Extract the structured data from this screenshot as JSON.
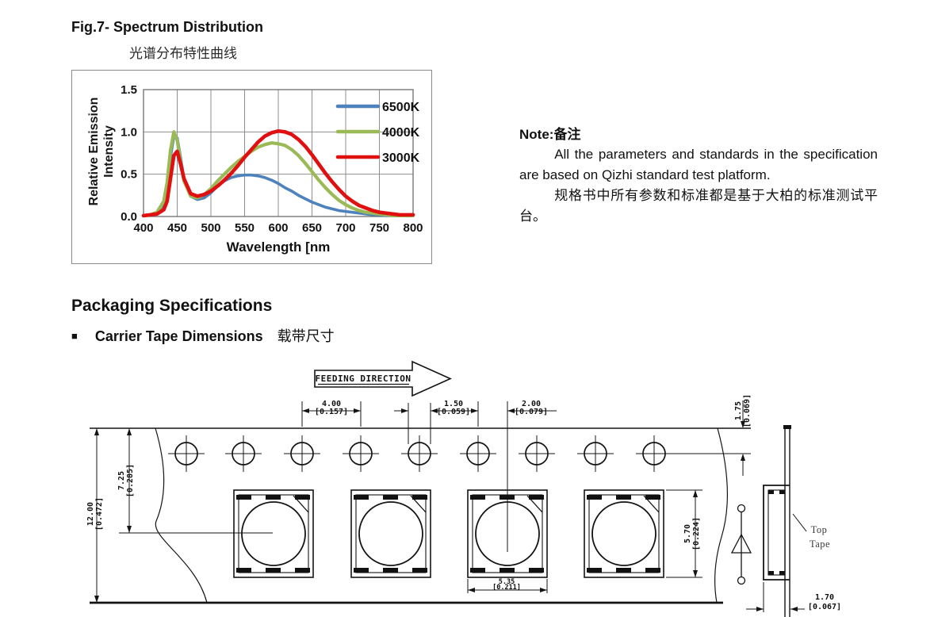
{
  "page": {
    "fig_title": "Fig.7- Spectrum Distribution",
    "fig_subtitle": "光谱分布特性曲线",
    "section_title": "Packaging Specifications",
    "bullet": "■",
    "subsection_title": "Carrier Tape Dimensions",
    "subsection_title_cn": "载带尺寸"
  },
  "note": {
    "title": "Note:备注",
    "body_en": "All the parameters and standards in the specification are based on Qizhi standard test platform.",
    "body_cn": "规格书中所有参数和标准都是基于大柏的标准测试平台。"
  },
  "chart_data": {
    "type": "line",
    "title": "",
    "xlabel": "Wavelength  [nm",
    "ylabel": "Relative Emission Intensity",
    "ylabel_lines": [
      "Relative Emission",
      "Intensity"
    ],
    "xlim": [
      400,
      800
    ],
    "ylim": [
      0,
      1.5
    ],
    "x_ticks": [
      400,
      450,
      500,
      550,
      600,
      650,
      700,
      750,
      800
    ],
    "y_ticks": [
      "0.0",
      "0.5",
      "1.0",
      "1.5"
    ],
    "grid": true,
    "legend_position": "top-right",
    "x": [
      400,
      410,
      420,
      430,
      435,
      440,
      445,
      450,
      455,
      460,
      470,
      480,
      490,
      500,
      510,
      520,
      530,
      540,
      550,
      560,
      570,
      580,
      590,
      600,
      610,
      620,
      630,
      640,
      650,
      660,
      670,
      680,
      690,
      700,
      710,
      720,
      730,
      740,
      750,
      760,
      770,
      780,
      790,
      800
    ],
    "series": [
      {
        "name": "6500K",
        "color": "#4d82bd",
        "values": [
          0.01,
          0.02,
          0.04,
          0.15,
          0.35,
          0.7,
          0.95,
          0.93,
          0.7,
          0.45,
          0.24,
          0.2,
          0.22,
          0.28,
          0.36,
          0.42,
          0.46,
          0.48,
          0.49,
          0.49,
          0.48,
          0.46,
          0.43,
          0.39,
          0.34,
          0.3,
          0.25,
          0.21,
          0.17,
          0.14,
          0.11,
          0.09,
          0.07,
          0.06,
          0.05,
          0.04,
          0.03,
          0.02,
          0.02,
          0.01,
          0.01,
          0.01,
          0.01,
          0.01
        ]
      },
      {
        "name": "4000K",
        "color": "#9ab957",
        "values": [
          0.01,
          0.02,
          0.05,
          0.18,
          0.4,
          0.78,
          1.0,
          0.9,
          0.65,
          0.42,
          0.24,
          0.22,
          0.26,
          0.33,
          0.42,
          0.5,
          0.58,
          0.65,
          0.71,
          0.77,
          0.82,
          0.85,
          0.87,
          0.86,
          0.84,
          0.79,
          0.72,
          0.63,
          0.53,
          0.43,
          0.34,
          0.26,
          0.19,
          0.14,
          0.1,
          0.07,
          0.05,
          0.04,
          0.03,
          0.02,
          0.01,
          0.01,
          0.01,
          0.01
        ]
      },
      {
        "name": "3000K",
        "color": "#e01010",
        "values": [
          0.01,
          0.02,
          0.03,
          0.08,
          0.18,
          0.45,
          0.72,
          0.77,
          0.62,
          0.45,
          0.27,
          0.24,
          0.26,
          0.3,
          0.36,
          0.43,
          0.51,
          0.6,
          0.7,
          0.79,
          0.88,
          0.95,
          0.99,
          1.01,
          1.0,
          0.97,
          0.91,
          0.83,
          0.73,
          0.62,
          0.51,
          0.41,
          0.32,
          0.24,
          0.18,
          0.13,
          0.1,
          0.07,
          0.05,
          0.04,
          0.03,
          0.02,
          0.02,
          0.02
        ]
      }
    ]
  },
  "drawing": {
    "feeding_direction": "FEEDING DIRECTION",
    "top_tape_line1": "Top",
    "top_tape_line2": "Tape",
    "dims": {
      "pitch": {
        "mm": "4.00",
        "inch": "[0.157]"
      },
      "hole_dia": {
        "mm": "1.50",
        "inch": "[0.059]"
      },
      "hole_to_pocket": {
        "mm": "2.00",
        "inch": "[0.079]"
      },
      "edge_to_hole": {
        "mm": "1.75",
        "inch": "[0.069]"
      },
      "edge_to_pocket": {
        "mm": "7.25",
        "inch": "[0.285]"
      },
      "tape_width": {
        "mm": "12.00",
        "inch": "[0.472]"
      },
      "pocket_height": {
        "mm": "5.70",
        "inch": "[0.224]"
      },
      "pocket_width": {
        "mm": "5.35",
        "inch": "[0.211]"
      },
      "tape_thickness": {
        "mm": "1.70",
        "inch": "[0.067]"
      }
    }
  }
}
